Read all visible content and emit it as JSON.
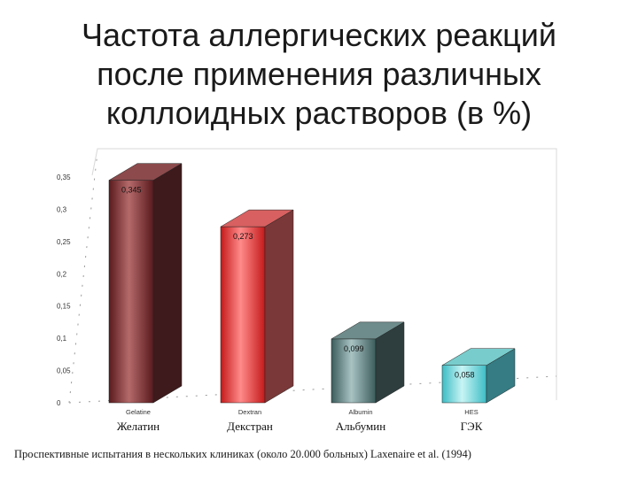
{
  "title": {
    "line1": "Частота аллергических реакций",
    "line2": "после применения различных",
    "line3": "коллоидных растворов (в %)"
  },
  "footnote": "Проспективные испытания в нескольких клиниках (около 20.000 больных) Laxenaire et al. (1994)",
  "chart_data": {
    "type": "bar",
    "title": "Частота аллергических реакций после применения различных коллоидных растворов (в %)",
    "categories": [
      "Gelatine",
      "Dextran",
      "Albumin",
      "HES"
    ],
    "category_labels_ru": [
      "Желатин",
      "Декстран",
      "Альбумин",
      "ГЭК"
    ],
    "values": [
      0.345,
      0.273,
      0.099,
      0.058
    ],
    "value_labels": [
      "0,345",
      "0,273",
      "0,099",
      "0,058"
    ],
    "ylim": [
      0,
      0.35
    ],
    "yticks": [
      0,
      0.05,
      0.1,
      0.15,
      0.2,
      0.25,
      0.3,
      0.35
    ],
    "ytick_labels": [
      "0",
      "0,05",
      "0,1",
      "0,15",
      "0,2",
      "0,25",
      "0,3",
      "0,35"
    ],
    "xlabel": "",
    "ylabel": "",
    "grid": false,
    "style": "3d",
    "colors": [
      {
        "front_light": "#b56a6a",
        "front_dark": "#5a1a1e",
        "side": "#3e1a1c",
        "top": "#8c4a4c"
      },
      {
        "front_light": "#ff8a8a",
        "front_dark": "#c41a1a",
        "side": "#7a3838",
        "top": "#d86060"
      },
      {
        "front_light": "#a9c3c3",
        "front_dark": "#3c5c5c",
        "side": "#2e3e3e",
        "top": "#6e8c8c"
      },
      {
        "front_light": "#c8f4f4",
        "front_dark": "#3cbcc4",
        "side": "#357c84",
        "top": "#78cccc"
      }
    ]
  }
}
